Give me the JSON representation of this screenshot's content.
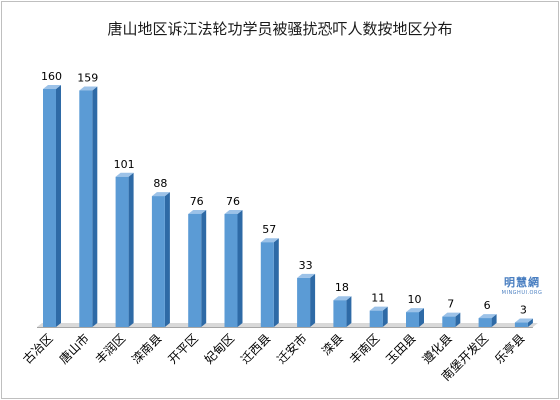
{
  "chart_data": {
    "type": "bar",
    "title": "唐山地区诉江法轮功学员被骚扰恐吓人数按地区分布",
    "xlabel": "",
    "ylabel": "",
    "ylim": [
      0,
      170
    ],
    "grid": false,
    "legend": "none",
    "categories": [
      "古冶区",
      "唐山市",
      "丰润区",
      "滦南县",
      "开平区",
      "妃甸区",
      "迁西县",
      "迁安市",
      "滦县",
      "丰南区",
      "玉田县",
      "遵化县",
      "南堡开发区",
      "乐亭县"
    ],
    "values": [
      160,
      159,
      101,
      88,
      76,
      76,
      57,
      33,
      18,
      11,
      10,
      7,
      6,
      3
    ],
    "data_labels": [
      "160",
      "159",
      "101",
      "88",
      "76",
      "76",
      "57",
      "33",
      "18",
      "11",
      "10",
      "7",
      "6",
      "3"
    ],
    "colors": {
      "bar_front": "#5b9bd5",
      "bar_side": "#2e6aa6",
      "bar_top": "#9cc2e8",
      "floor": "#d9d9d9"
    }
  },
  "watermark": {
    "main": "明慧網",
    "sub": "MINGHUI.ORG"
  }
}
